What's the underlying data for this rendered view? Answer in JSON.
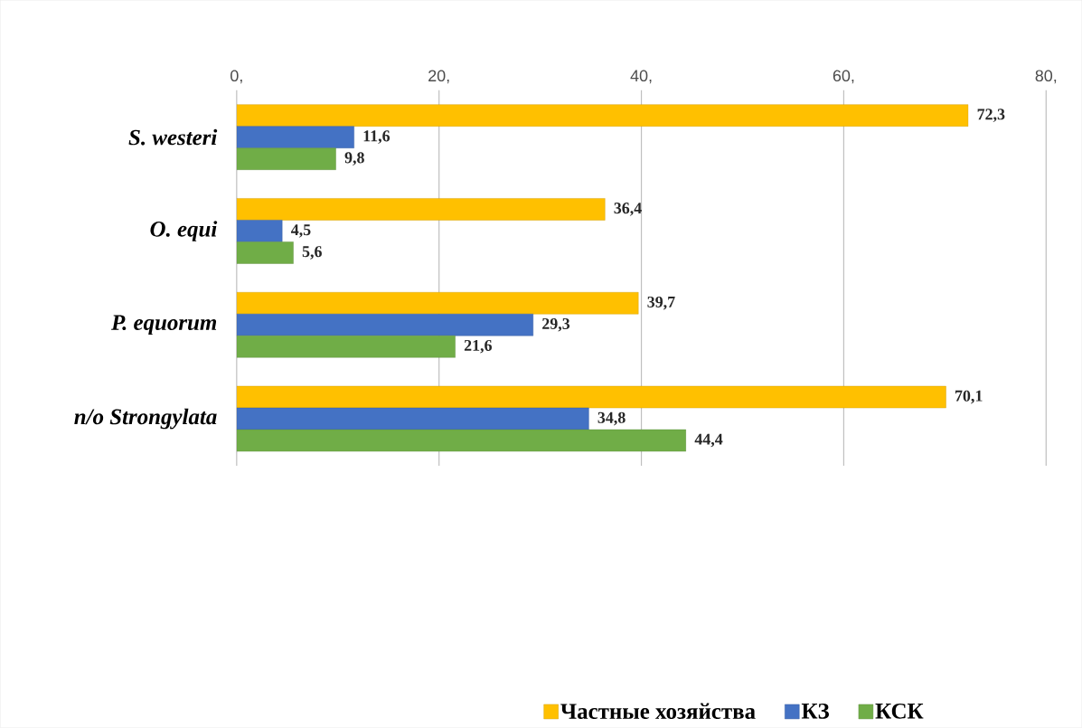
{
  "chart_data": {
    "type": "bar",
    "orientation": "horizontal",
    "categories": [
      "S. westeri",
      "O. equi",
      "P. equorum",
      "n/o Strongylata"
    ],
    "series": [
      {
        "name": "Частные хозяйства",
        "color": "#ffc000",
        "values": [
          72.3,
          36.4,
          39.7,
          70.1
        ],
        "value_labels": [
          "72,3",
          "36,4",
          "39,7",
          "70,1"
        ]
      },
      {
        "name": "КЗ",
        "color": "#4472c4",
        "values": [
          11.6,
          4.5,
          29.3,
          34.8
        ],
        "value_labels": [
          "11,6",
          "4,5",
          "29,3",
          "34,8"
        ]
      },
      {
        "name": "КСК",
        "color": "#70ad47",
        "values": [
          9.8,
          5.6,
          21.6,
          44.4
        ],
        "value_labels": [
          "9,8",
          "5,6",
          "21,6",
          "44,4"
        ]
      }
    ],
    "xlim": [
      0,
      80
    ],
    "xticks": [
      {
        "value": 0,
        "label": "0,"
      },
      {
        "value": 20,
        "label": "20,"
      },
      {
        "value": 40,
        "label": "40,"
      },
      {
        "value": 60,
        "label": "60,"
      },
      {
        "value": 80,
        "label": "80,"
      }
    ],
    "grid": "x",
    "legend": "bottom"
  }
}
